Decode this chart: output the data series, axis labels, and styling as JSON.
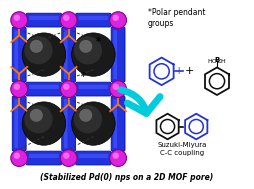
{
  "fig_width": 2.54,
  "fig_height": 1.89,
  "dpi": 100,
  "bg_color": "#ffffff",
  "mof_blue": "#2233dd",
  "mof_blue_light": "#4455ff",
  "mof_blue_dark": "#0011aa",
  "node_color": "#dd22dd",
  "node_edge": "#880088",
  "pd_color": "#222222",
  "pd_mid": "#444444",
  "pd_highlight": "#888888",
  "pendant_color": "#ff7700",
  "arrow_color": "#00ccdd",
  "text_color": "#000000",
  "title_text": "(Stabilized Pd(0) nps on a 2D MOF pore)",
  "label_polar": "*Polar pendant\ngroups",
  "label_suzuki": "Suzuki-Miyura\nC-C coupling"
}
